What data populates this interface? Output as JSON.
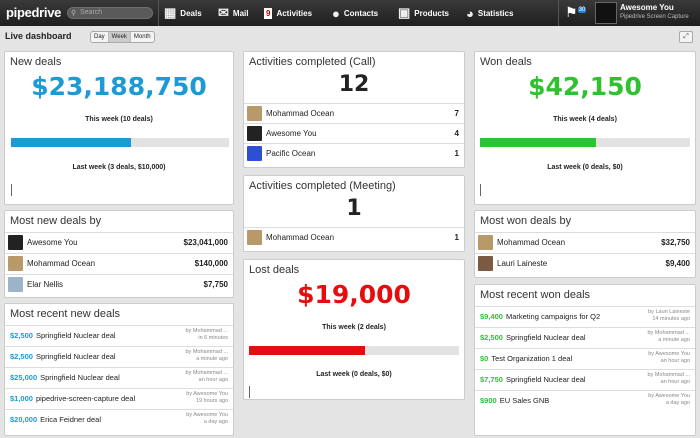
{
  "app": {
    "logo": "pipedrive",
    "search_placeholder": "Search"
  },
  "nav": [
    {
      "label": "Deals",
      "icon": "deals-icon"
    },
    {
      "label": "Mail",
      "icon": "mail-icon"
    },
    {
      "label": "Activities",
      "icon": "calendar-icon",
      "badge": "9"
    },
    {
      "label": "Contacts",
      "icon": "person-icon"
    },
    {
      "label": "Products",
      "icon": "box-icon"
    },
    {
      "label": "Statistics",
      "icon": "stats-icon"
    }
  ],
  "user": {
    "name": "Awesome You",
    "company": "Pipedrive Screen Capture",
    "flag_badge": "30"
  },
  "page": {
    "title": "Live dashboard",
    "periods": [
      "Day",
      "Week",
      "Month"
    ],
    "active_period": "Week"
  },
  "colors": {
    "blue": "#1c9ad6",
    "green": "#2fc230",
    "red": "#e60d0d"
  },
  "new_deals": {
    "title": "New deals",
    "value": "$23,188,750",
    "this_week": "This week (10 deals)",
    "progress": 0.55,
    "last_week": "Last week (3 deals, $10,000)"
  },
  "won_deals": {
    "title": "Won deals",
    "value": "$42,150",
    "this_week": "This week (4 deals)",
    "progress": 0.55,
    "last_week": "Last week (0 deals, $0)"
  },
  "lost_deals": {
    "title": "Lost deals",
    "value": "$19,000",
    "this_week": "This week (2 deals)",
    "progress": 0.55,
    "last_week": "Last week (0 deals, $0)"
  },
  "activities_call": {
    "title": "Activities completed (Call)",
    "total": "12",
    "rows": [
      {
        "name": "Mohammad Ocean",
        "value": "7"
      },
      {
        "name": "Awesome You",
        "value": "4"
      },
      {
        "name": "Pacific Ocean",
        "value": "1"
      }
    ]
  },
  "activities_meeting": {
    "title": "Activities completed (Meeting)",
    "total": "1",
    "rows": [
      {
        "name": "Mohammad Ocean",
        "value": "1"
      }
    ]
  },
  "most_new_deals": {
    "title": "Most new deals by",
    "rows": [
      {
        "name": "Awesome You",
        "value": "$23,041,000"
      },
      {
        "name": "Mohammad Ocean",
        "value": "$140,000"
      },
      {
        "name": "Elar Nellis",
        "value": "$7,750"
      }
    ]
  },
  "most_won_deals": {
    "title": "Most won deals by",
    "rows": [
      {
        "name": "Mohammad Ocean",
        "value": "$32,750"
      },
      {
        "name": "Lauri Laineste",
        "value": "$9,400"
      }
    ]
  },
  "recent_new": {
    "title": "Most recent new deals",
    "rows": [
      {
        "amount": "$2,500",
        "name": "Springfield Nuclear deal",
        "by": "by Mohammad ...",
        "when": "in 6 minutes"
      },
      {
        "amount": "$2,500",
        "name": "Springfield Nuclear deal",
        "by": "by Mohammad ...",
        "when": "a minute ago"
      },
      {
        "amount": "$25,000",
        "name": "Springfield Nuclear deal",
        "by": "by Mohammad ...",
        "when": "an hour ago"
      },
      {
        "amount": "$1,000",
        "name": "pipedrive-screen-capture deal",
        "by": "by Awesome You",
        "when": "19 hours ago"
      },
      {
        "amount": "$20,000",
        "name": "Erica Feidner deal",
        "by": "by Awesome You",
        "when": "a day ago"
      }
    ]
  },
  "recent_won": {
    "title": "Most recent won deals",
    "rows": [
      {
        "amount": "$9,400",
        "name": "Marketing campaigns for Q2",
        "by": "by Lauri Laineste",
        "when": "14 minutes ago"
      },
      {
        "amount": "$2,500",
        "name": "Springfield Nuclear deal",
        "by": "by Mohammad ...",
        "when": "a minute ago"
      },
      {
        "amount": "$0",
        "name": "Test Organization 1 deal",
        "by": "by Awesome You",
        "when": "an hour ago"
      },
      {
        "amount": "$7,750",
        "name": "Springfield Nuclear deal",
        "by": "by Mohammad ...",
        "when": "an hour ago"
      },
      {
        "amount": "$900",
        "name": "EU Sales GNB",
        "by": "by Awesome You",
        "when": "a day ago"
      }
    ]
  }
}
